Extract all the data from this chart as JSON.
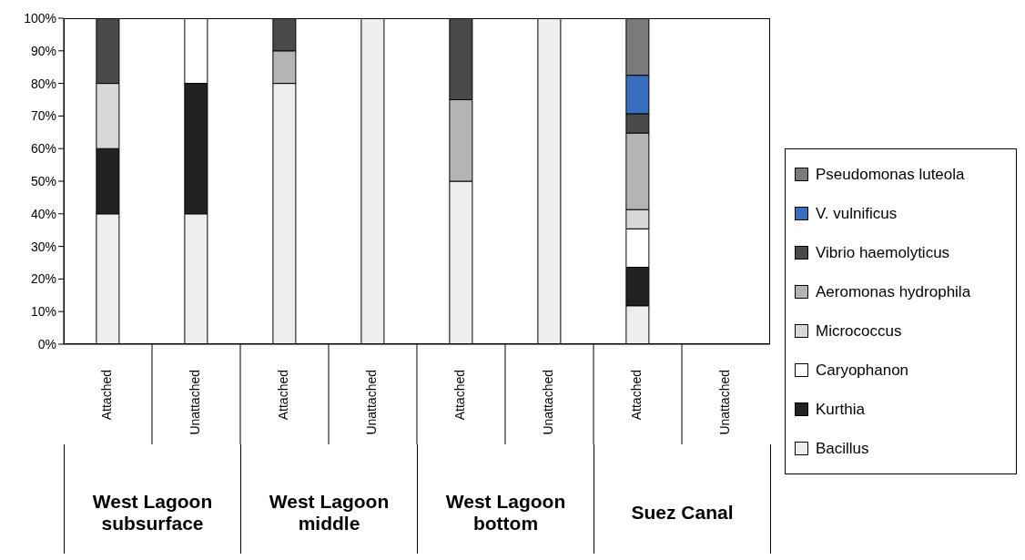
{
  "chart_data": {
    "type": "bar",
    "stacked": true,
    "categories": [
      "Attached",
      "Unattached",
      "Attached",
      "Unattached",
      "Attached",
      "Unattached",
      "Attached",
      "Unattached"
    ],
    "annotations": [
      "West Lagoon subsurface",
      "West Lagoon middle",
      "West Lagoon bottom",
      "Suez Canal"
    ],
    "series": [
      {
        "name": "Bacillus",
        "color": "#eeeeee",
        "values": [
          40,
          40,
          80,
          100,
          50,
          100,
          11.8,
          null
        ]
      },
      {
        "name": "Kurthia",
        "color": "#222222",
        "values": [
          20,
          40,
          null,
          null,
          null,
          null,
          11.8,
          null
        ]
      },
      {
        "name": "Caryophanon",
        "color": "#ffffff",
        "values": [
          null,
          20,
          null,
          null,
          null,
          null,
          11.8,
          null
        ]
      },
      {
        "name": "Micrococcus",
        "color": "#d8d8d8",
        "values": [
          20,
          null,
          null,
          null,
          null,
          null,
          5.9,
          null
        ]
      },
      {
        "name": "Aeromonas hydrophila",
        "color": "#b4b4b4",
        "values": [
          null,
          null,
          10,
          null,
          25,
          null,
          23.5,
          null
        ]
      },
      {
        "name": "Vibrio haemolyticus",
        "color": "#4a4a4a",
        "values": [
          20,
          null,
          10,
          null,
          25,
          null,
          5.9,
          null
        ]
      },
      {
        "name": "V. vulnificus",
        "color": "#3a6fbf",
        "values": [
          null,
          null,
          null,
          null,
          null,
          null,
          11.8,
          null
        ]
      },
      {
        "name": "Pseudomonas luteola",
        "color": "#7a7a7a",
        "values": [
          null,
          null,
          null,
          null,
          null,
          null,
          17.6,
          null
        ]
      }
    ],
    "ylim": [
      0,
      100
    ],
    "yticks": [
      {
        "value": 0,
        "label": "0%"
      },
      {
        "value": 10,
        "label": "10%"
      },
      {
        "value": 20,
        "label": "20%"
      },
      {
        "value": 30,
        "label": "30%"
      },
      {
        "value": 40,
        "label": "40%"
      },
      {
        "value": 50,
        "label": "50%"
      },
      {
        "value": 60,
        "label": "60%"
      },
      {
        "value": 70,
        "label": "70%"
      },
      {
        "value": 80,
        "label": "80%"
      },
      {
        "value": 90,
        "label": "90%"
      },
      {
        "value": 100,
        "label": "100%"
      }
    ],
    "legend": "right"
  }
}
